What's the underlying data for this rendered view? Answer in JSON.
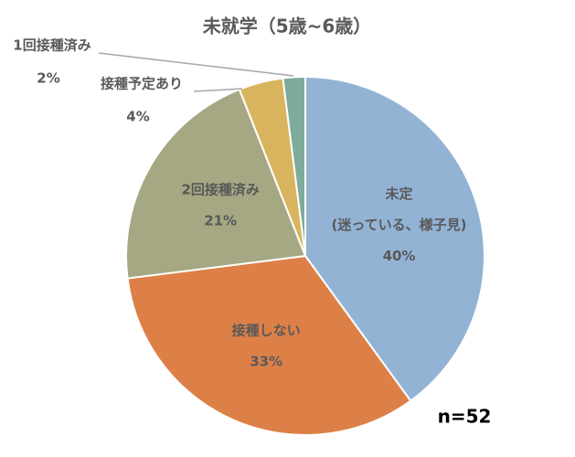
{
  "chart_data": {
    "type": "pie",
    "title": "未就学（5歳~6歳）",
    "categories": [
      [
        "未定",
        "(迷っている、様子見)"
      ],
      [
        "接種しない"
      ],
      [
        "2回接種済み"
      ],
      [
        "接種予定あり"
      ],
      [
        "1回接種済み"
      ]
    ],
    "values": [
      40,
      33,
      21,
      4,
      2
    ],
    "value_labels": [
      "40%",
      "33%",
      "21%",
      "4%",
      "2%"
    ],
    "colors": [
      "#93b3d5",
      "#dd8047",
      "#a5a882",
      "#d9b45e",
      "#7fab9a"
    ],
    "annotation": "n=52"
  }
}
